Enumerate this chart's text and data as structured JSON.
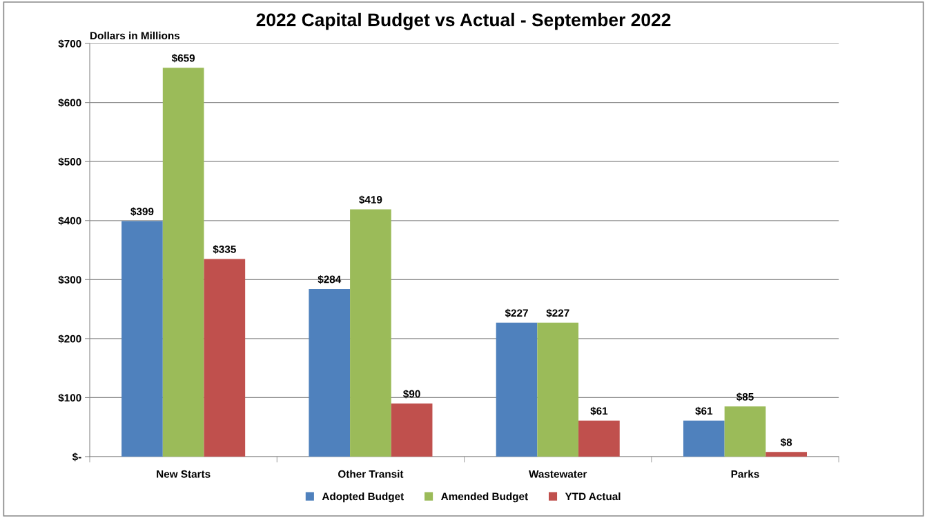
{
  "chart_data": {
    "type": "bar",
    "title": "2022 Capital Budget vs Actual - September 2022",
    "ylabel": "Dollars in Millions",
    "categories": [
      "New Starts",
      "Other Transit",
      "Wastewater",
      "Parks"
    ],
    "series": [
      {
        "name": "Adopted Budget",
        "color": "#4f81bd",
        "values": [
          399,
          284,
          227,
          61
        ],
        "value_labels": [
          "$399",
          "$284",
          "$227",
          "$61"
        ]
      },
      {
        "name": "Amended Budget",
        "color": "#9bbb59",
        "values": [
          659,
          419,
          227,
          85
        ],
        "value_labels": [
          "$659",
          "$419",
          "$227",
          "$85"
        ]
      },
      {
        "name": "YTD Actual",
        "color": "#c0504d",
        "values": [
          335,
          90,
          61,
          8
        ],
        "value_labels": [
          "$335",
          "$90",
          "$61",
          "$8"
        ]
      }
    ],
    "ylim": [
      0,
      700
    ],
    "yticks": [
      {
        "value": 0,
        "label": "$-"
      },
      {
        "value": 100,
        "label": "$100"
      },
      {
        "value": 200,
        "label": "$200"
      },
      {
        "value": 300,
        "label": "$300"
      },
      {
        "value": 400,
        "label": "$400"
      },
      {
        "value": 500,
        "label": "$500"
      },
      {
        "value": 600,
        "label": "$600"
      },
      {
        "value": 700,
        "label": "$700"
      }
    ],
    "grid": "y",
    "legend": "bottom"
  }
}
